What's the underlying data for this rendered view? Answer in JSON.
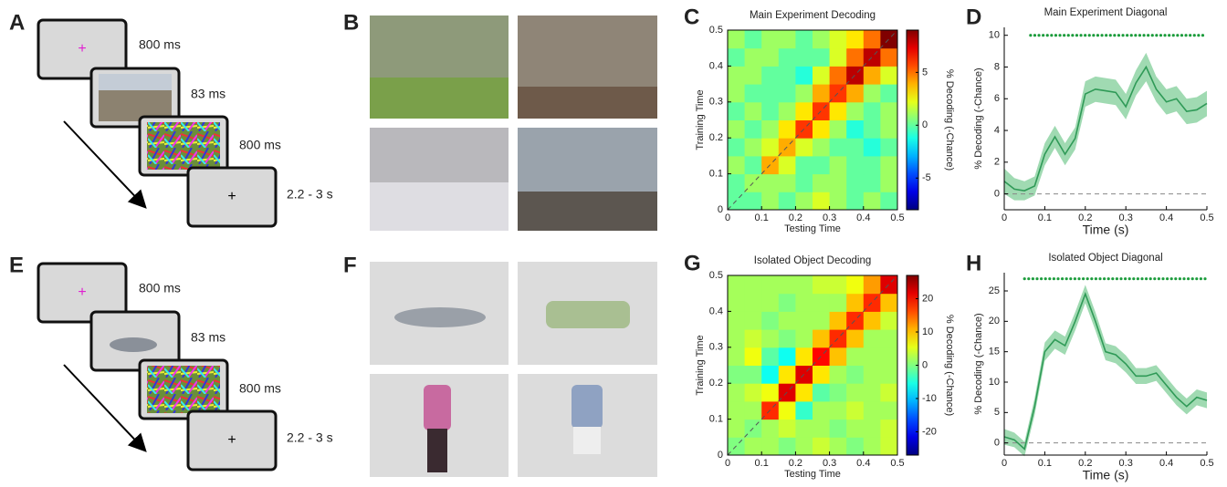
{
  "panel_labels": [
    "A",
    "B",
    "C",
    "D",
    "E",
    "F",
    "G",
    "H"
  ],
  "timelines": [
    {
      "steps": [
        {
          "symbol": "+",
          "duration": "800 ms"
        },
        {
          "duration": "83 ms"
        },
        {
          "duration": "800 ms"
        },
        {
          "symbol": "+",
          "duration": "2.2 - 3 s"
        }
      ]
    },
    {
      "steps": [
        {
          "symbol": "+",
          "duration": "800 ms"
        },
        {
          "duration": "83 ms"
        },
        {
          "duration": "800 ms"
        },
        {
          "symbol": "+",
          "duration": "2.2 - 3 s"
        }
      ]
    }
  ],
  "chart_data": [
    {
      "type": "heatmap",
      "title": "Main Experiment Decoding",
      "xlabel": "Testing Time",
      "ylabel": "Training Time",
      "xlim": [
        0,
        0.5
      ],
      "ylim": [
        0,
        0.5
      ],
      "xticks": [
        0,
        0.1,
        0.2,
        0.3,
        0.4,
        0.5
      ],
      "yticks": [
        0,
        0.1,
        0.2,
        0.3,
        0.4,
        0.5
      ],
      "values": [
        [
          0,
          0,
          1,
          0,
          1,
          2,
          1,
          0,
          1,
          0
        ],
        [
          0,
          1,
          1,
          1,
          0,
          1,
          1,
          0,
          0,
          1
        ],
        [
          1,
          0,
          4,
          2,
          0,
          0,
          1,
          0,
          0,
          1
        ],
        [
          0,
          1,
          2,
          4,
          2,
          1,
          0,
          0,
          -1,
          0
        ],
        [
          1,
          0,
          1,
          3,
          6,
          3,
          1,
          -1,
          0,
          1
        ],
        [
          0,
          1,
          0,
          1,
          3,
          6,
          3,
          1,
          0,
          1
        ],
        [
          1,
          0,
          0,
          0,
          1,
          4,
          6,
          4,
          1,
          0
        ],
        [
          1,
          1,
          0,
          0,
          -1,
          2,
          5,
          8,
          4,
          2
        ],
        [
          0,
          1,
          1,
          0,
          0,
          0,
          2,
          5,
          8,
          5
        ],
        [
          1,
          0,
          1,
          1,
          0,
          1,
          2,
          3,
          5,
          9
        ]
      ],
      "colorbar": {
        "label": "% Decoding (-Chance)",
        "lim": [
          -8,
          9
        ],
        "ticks": [
          -5,
          0,
          5
        ]
      }
    },
    {
      "type": "line",
      "title": "Main Experiment Diagonal",
      "xlabel": "Time (s)",
      "ylabel": "% Decoding (-Chance)",
      "x": [
        0,
        0.025,
        0.05,
        0.075,
        0.1,
        0.125,
        0.15,
        0.175,
        0.2,
        0.225,
        0.25,
        0.275,
        0.3,
        0.325,
        0.35,
        0.375,
        0.4,
        0.425,
        0.45,
        0.475,
        0.5
      ],
      "values": [
        0.8,
        0.3,
        0.2,
        0.5,
        2.5,
        3.6,
        2.5,
        3.5,
        6.3,
        6.6,
        6.5,
        6.4,
        5.5,
        7.0,
        8.0,
        6.6,
        5.8,
        6.0,
        5.2,
        5.3,
        5.7
      ],
      "errors": [
        0.8,
        0.7,
        0.6,
        0.6,
        0.7,
        0.7,
        0.7,
        0.7,
        0.8,
        0.8,
        0.8,
        0.8,
        0.8,
        0.8,
        0.9,
        0.8,
        0.8,
        0.8,
        0.8,
        0.8,
        0.8
      ],
      "color": "#2f9a57",
      "band_color": "#8fd3a5",
      "xlim": [
        0,
        0.5
      ],
      "ylim": [
        -1,
        10.5
      ],
      "xticks": [
        0,
        0.1,
        0.2,
        0.3,
        0.4,
        0.5
      ],
      "yticks": [
        0,
        2,
        4,
        6,
        8,
        10
      ],
      "chance": 0,
      "significance": {
        "y": 10,
        "x": [
          0.065,
          0.5
        ],
        "color": "#1c9c3c"
      }
    },
    {
      "type": "heatmap",
      "title": "Isolated Object Decoding",
      "xlabel": "Testing Time",
      "ylabel": "Training Time",
      "xlim": [
        0,
        0.5
      ],
      "ylim": [
        0,
        0.5
      ],
      "xticks": [
        0,
        0.1,
        0.2,
        0.3,
        0.4,
        0.5
      ],
      "yticks": [
        0,
        0.1,
        0.2,
        0.3,
        0.4,
        0.5
      ],
      "values": [
        [
          0,
          2,
          2,
          0,
          2,
          4,
          2,
          0,
          2,
          4
        ],
        [
          2,
          0,
          2,
          4,
          2,
          2,
          0,
          2,
          2,
          4
        ],
        [
          2,
          2,
          18,
          6,
          -4,
          2,
          2,
          4,
          2,
          2
        ],
        [
          2,
          4,
          6,
          22,
          8,
          -2,
          0,
          2,
          2,
          4
        ],
        [
          0,
          0,
          -6,
          8,
          22,
          8,
          2,
          0,
          2,
          2
        ],
        [
          2,
          6,
          -2,
          -6,
          8,
          20,
          10,
          2,
          2,
          2
        ],
        [
          2,
          4,
          2,
          0,
          2,
          10,
          18,
          10,
          2,
          2
        ],
        [
          2,
          2,
          0,
          2,
          2,
          2,
          10,
          18,
          10,
          4
        ],
        [
          2,
          2,
          2,
          0,
          2,
          2,
          2,
          10,
          18,
          10
        ],
        [
          2,
          2,
          2,
          2,
          2,
          4,
          4,
          6,
          12,
          22
        ]
      ],
      "colorbar": {
        "label": "% Decoding (-Chance)",
        "lim": [
          -27,
          27
        ],
        "ticks": [
          -20,
          -10,
          0,
          10,
          20
        ]
      }
    },
    {
      "type": "line",
      "title": "Isolated Object Diagonal",
      "xlabel": "Time (s)",
      "ylabel": "% Decoding (-Chance)",
      "x": [
        0,
        0.025,
        0.05,
        0.075,
        0.1,
        0.125,
        0.15,
        0.175,
        0.2,
        0.225,
        0.25,
        0.275,
        0.3,
        0.325,
        0.35,
        0.375,
        0.4,
        0.425,
        0.45,
        0.475,
        0.5
      ],
      "values": [
        1,
        0.5,
        -1,
        6,
        15,
        17,
        16,
        20,
        24.5,
        20,
        15,
        14.5,
        13,
        11,
        11,
        11.5,
        9.5,
        7.5,
        6,
        7.5,
        7
      ],
      "errors": [
        1.3,
        1.2,
        1.2,
        1.4,
        1.5,
        1.5,
        1.5,
        1.5,
        1.5,
        1.5,
        1.4,
        1.4,
        1.4,
        1.3,
        1.3,
        1.3,
        1.3,
        1.3,
        1.3,
        1.3,
        1.3
      ],
      "color": "#2f9a57",
      "band_color": "#8fd3a5",
      "xlim": [
        0,
        0.5
      ],
      "ylim": [
        -2,
        28
      ],
      "xticks": [
        0,
        0.1,
        0.2,
        0.3,
        0.4,
        0.5
      ],
      "yticks": [
        0,
        5,
        10,
        15,
        20,
        25
      ],
      "chance": 0,
      "significance": {
        "y": 27,
        "x": [
          0.05,
          0.5
        ],
        "color": "#1c9c3c"
      }
    }
  ]
}
